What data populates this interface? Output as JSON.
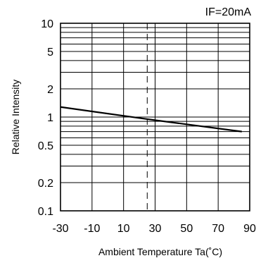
{
  "chart_data": {
    "type": "line",
    "condition_label": "IF=20mA",
    "xlabel": "Ambient Temperature  Ta(˚C)",
    "ylabel": "Relative Intensity",
    "x_scale": "linear",
    "y_scale": "log",
    "xlim": [
      -30,
      90
    ],
    "ylim": [
      0.1,
      10
    ],
    "x_ticks": [
      -30,
      -10,
      10,
      30,
      50,
      70,
      90
    ],
    "x_ticklabels": [
      "-30",
      "-10",
      "10",
      "30",
      "50",
      "70",
      "90"
    ],
    "y_ticks": [
      0.1,
      0.2,
      0.5,
      1,
      2,
      5,
      10
    ],
    "y_ticklabels": [
      "0.1",
      "0.2",
      "0.5",
      "1",
      "2",
      "5",
      "10"
    ],
    "grid": true,
    "reference_line_x": 25,
    "series": [
      {
        "x": [
          -30,
          25,
          85
        ],
        "y": [
          1.28,
          0.95,
          0.7
        ]
      }
    ]
  }
}
